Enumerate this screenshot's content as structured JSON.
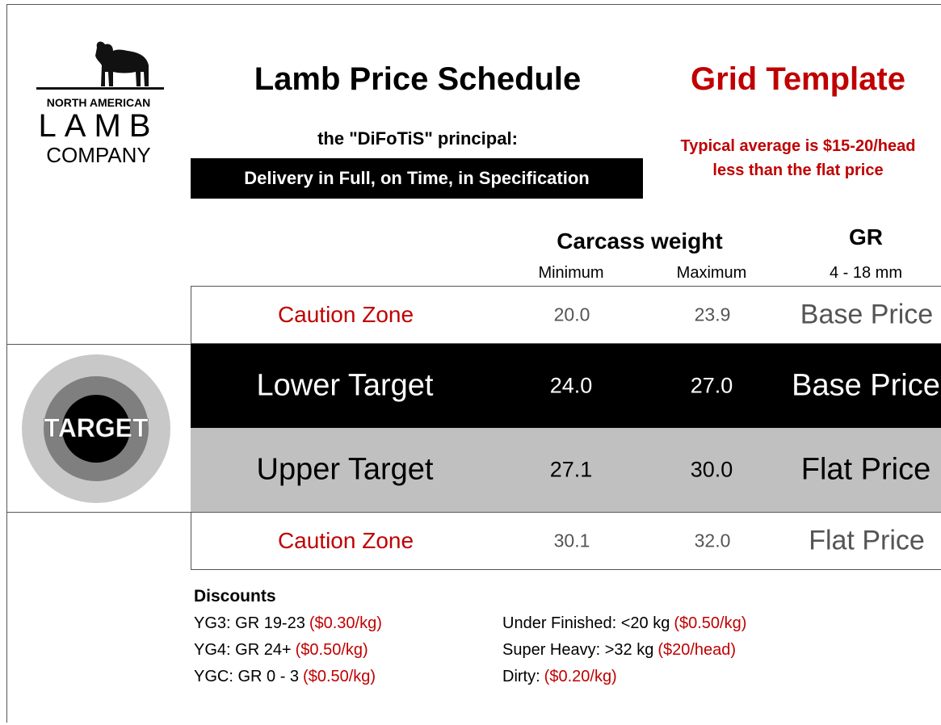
{
  "logo": {
    "line1": "NORTH AMERICAN",
    "line2": "LAMB",
    "line3": "COMPANY"
  },
  "header": {
    "title": "Lamb Price Schedule",
    "subtitle": "Grid Template",
    "principle": "the \"DiFoTiS\" principal:",
    "banner": "Delivery in Full, on Time, in Specification",
    "note": [
      "Typical average is $15-20/head",
      "less than the flat price"
    ]
  },
  "columns": {
    "weight": "Carcass weight",
    "min": "Minimum",
    "max": "Maximum",
    "gr": "GR",
    "gr_range": "4 - 18 mm"
  },
  "target_icon": "TARGET",
  "rows": [
    {
      "zone": "Caution Zone",
      "min": "20.0",
      "max": "23.9",
      "price": "Base Price"
    },
    {
      "zone": "Lower Target",
      "min": "24.0",
      "max": "27.0",
      "price": "Base Price"
    },
    {
      "zone": "Upper Target",
      "min": "27.1",
      "max": "30.0",
      "price": "Flat Price"
    },
    {
      "zone": "Caution Zone",
      "min": "30.1",
      "max": "32.0",
      "price": "Flat Price"
    }
  ],
  "discounts": {
    "title": "Discounts",
    "left": [
      {
        "text": "YG3: GR 19-23",
        "amount": "($0.30/kg)"
      },
      {
        "text": "YG4: GR 24+",
        "amount": "($0.50/kg)"
      },
      {
        "text": "YGC: GR 0 - 3",
        "amount": "($0.50/kg)"
      }
    ],
    "right": [
      {
        "text": "Under Finished: <20 kg",
        "amount": "($0.50/kg)"
      },
      {
        "text": "Super Heavy: >32 kg",
        "amount": "($20/head)"
      },
      {
        "text": "Dirty:",
        "amount": "($0.20/kg)"
      }
    ]
  }
}
